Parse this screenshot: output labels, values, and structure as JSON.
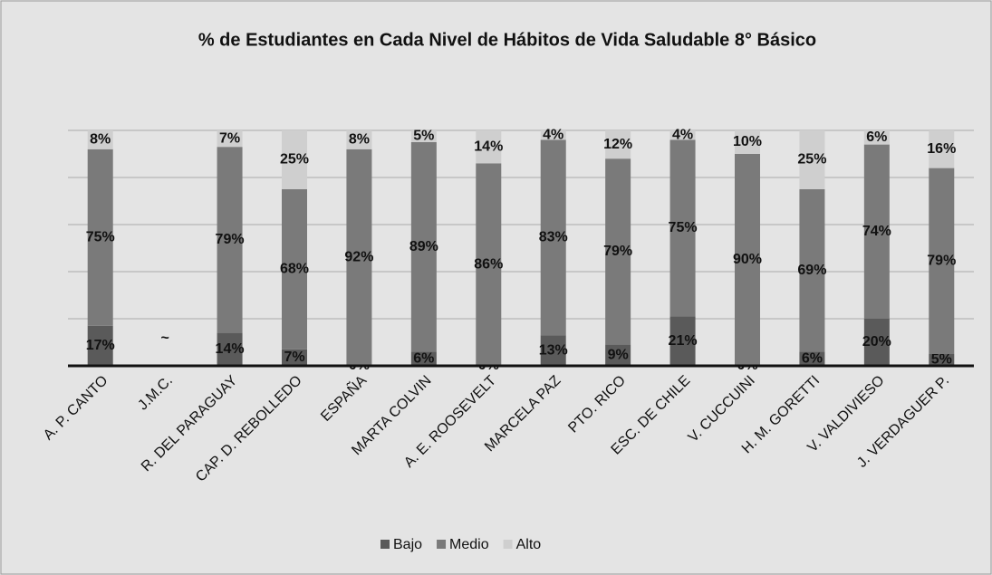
{
  "chart_data": {
    "type": "stacked_bar",
    "title": "% de Estudiantes en Cada Nivel de Hábitos de Vida Saludable 8° Básico",
    "annotation": "~",
    "categories": [
      "A. P. CANTO",
      "J.M.C.",
      "R. DEL PARAGUAY",
      "CAP. D. REBOLLEDO",
      "ESPAÑA",
      "MARTA COLVIN",
      "A. E. ROOSEVELT",
      "MARCELA PAZ",
      "PTO. RICO",
      "ESC. DE CHILE",
      "V. CUCCUINI",
      "H. M. GORETTI",
      "V. VALDIVIESO",
      "J. VERDAGUER P."
    ],
    "series": [
      {
        "name": "Bajo",
        "color": "#5a5a5a",
        "values": [
          17,
          null,
          14,
          7,
          0,
          6,
          0,
          13,
          9,
          21,
          0,
          6,
          20,
          5
        ],
        "value_labels": [
          "17%",
          null,
          "14%",
          "7%",
          "0%",
          "6%",
          "0%",
          "13%",
          "9%",
          "21%",
          "0%",
          "6%",
          "20%",
          "5%"
        ]
      },
      {
        "name": "Medio",
        "color": "#7a7a7a",
        "values": [
          75,
          null,
          79,
          68,
          92,
          89,
          86,
          83,
          79,
          75,
          90,
          69,
          74,
          79
        ],
        "value_labels": [
          "75%",
          null,
          "79%",
          "68%",
          "92%",
          "89%",
          "86%",
          "83%",
          "79%",
          "75%",
          "90%",
          "69%",
          "74%",
          "79%"
        ]
      },
      {
        "name": "Alto",
        "color": "#cfcfcf",
        "values": [
          8,
          null,
          7,
          25,
          8,
          5,
          14,
          4,
          12,
          4,
          10,
          25,
          6,
          16
        ],
        "value_labels": [
          "8%",
          null,
          "7%",
          "25%",
          "8%",
          "5%",
          "14%",
          "4%",
          "12%",
          "4%",
          "10%",
          "25%",
          "6%",
          "16%"
        ]
      }
    ],
    "ylim": [
      0,
      100
    ],
    "yticks": [
      0,
      20,
      40,
      60,
      80,
      100
    ],
    "grid": true,
    "legend": "bottom"
  }
}
